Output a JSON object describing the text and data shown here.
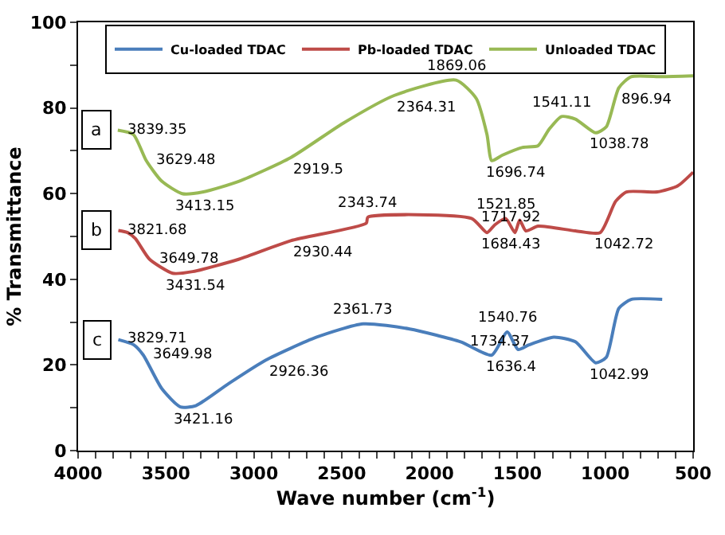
{
  "chart_data": {
    "type": "line",
    "xlabel": "Wave number (cm$^{-1}$)",
    "ylabel": "% Transmittance",
    "xlim": [
      4000,
      500
    ],
    "xticks": [
      4000,
      {
        "value": 3900,
        "label": null
      },
      {
        "value": 3800,
        "label": null
      },
      {
        "value": 3700,
        "label": null
      },
      {
        "value": 3600,
        "label": null
      },
      3500,
      {
        "value": 3400,
        "label": null
      },
      {
        "value": 3300,
        "label": null
      },
      {
        "value": 3200,
        "label": null
      },
      {
        "value": 3100,
        "label": null
      },
      3000,
      {
        "value": 2900,
        "label": null
      },
      {
        "value": 2800,
        "label": null
      },
      {
        "value": 2700,
        "label": null
      },
      {
        "value": 2600,
        "label": null
      },
      2500,
      {
        "value": 2400,
        "label": null
      },
      {
        "value": 2300,
        "label": null
      },
      {
        "value": 2200,
        "label": null
      },
      {
        "value": 2100,
        "label": null
      },
      2000,
      {
        "value": 1900,
        "label": null
      },
      {
        "value": 1800,
        "label": null
      },
      {
        "value": 1700,
        "label": null
      },
      {
        "value": 1600,
        "label": null
      },
      1500,
      {
        "value": 1400,
        "label": null
      },
      {
        "value": 1300,
        "label": null
      },
      {
        "value": 1200,
        "label": null
      },
      {
        "value": 1100,
        "label": null
      },
      1000,
      {
        "value": 900,
        "label": null
      },
      {
        "value": 800,
        "label": null
      },
      {
        "value": 700,
        "label": null
      },
      {
        "value": 600,
        "label": null
      },
      500
    ],
    "ylim": [
      0,
      100
    ],
    "yticks": [
      0,
      {
        "value": 10,
        "label": null
      },
      20,
      {
        "value": 30,
        "label": null
      },
      40,
      {
        "value": 50,
        "label": null
      },
      60,
      {
        "value": 70,
        "label": null
      },
      80,
      {
        "value": 90,
        "label": null
      },
      100
    ],
    "legend": "top",
    "marker": "none",
    "line_style": "solid",
    "series": [
      {
        "name": "Cu-loaded TDAC",
        "color": "#4a7ebb",
        "x": [
          3771,
          3683,
          3629,
          3524,
          3418,
          3330,
          3145,
          2933,
          2642,
          2378,
          2113,
          1823,
          1646,
          1558,
          1496,
          1434,
          1293,
          1170,
          1055,
          994,
          923,
          853,
          676
        ],
        "values": [
          25.9,
          24.7,
          22.3,
          14.5,
          10.2,
          10.5,
          15.6,
          21.1,
          26.5,
          29.6,
          28.4,
          25.4,
          22.3,
          27.7,
          23.6,
          24.7,
          26.5,
          25.4,
          20.5,
          21.8,
          33.2,
          35.3,
          35.3
        ]
      },
      {
        "name": "Pb-loaded TDAC",
        "color": "#be4b48",
        "x": [
          3771,
          3718,
          3674,
          3594,
          3462,
          3348,
          3083,
          2790,
          2360,
          2351,
          1761,
          1673,
          1629,
          1567,
          1514,
          1487,
          1452,
          1382,
          1170,
          1029,
          941,
          879,
          703,
          588,
          500
        ],
        "values": [
          51.4,
          50.9,
          49.5,
          44.7,
          41.4,
          41.8,
          44.7,
          49,
          53.1,
          54.5,
          54.2,
          50.9,
          52.7,
          54.2,
          50.9,
          53.8,
          51.3,
          52.4,
          51.3,
          50.9,
          58.2,
          60.4,
          60.4,
          61.8,
          65
        ]
      },
      {
        "name": "Unloaded TDAC",
        "color": "#98b954",
        "x": [
          3774,
          3685,
          3612,
          3524,
          3408,
          3287,
          3083,
          2790,
          2493,
          2202,
          1849,
          1734,
          1673,
          1646,
          1584,
          1470,
          1382,
          1320,
          1249,
          1170,
          1055,
          994,
          923,
          853,
          676,
          500
        ],
        "values": [
          74.8,
          73.8,
          67.7,
          62.9,
          60,
          60.4,
          62.9,
          68.4,
          76.4,
          82.9,
          86.5,
          82.2,
          73.8,
          67.7,
          69,
          70.8,
          71.2,
          75,
          78,
          77.4,
          74.2,
          75.6,
          84.7,
          87.3,
          87.3,
          87.5
        ]
      }
    ],
    "annotations": [
      {
        "text": "a",
        "x": 3774,
        "y": 74.8
      },
      {
        "text": "b",
        "x": 3771,
        "y": 51.4
      },
      {
        "text": "c",
        "x": 3771,
        "y": 25.9
      },
      {
        "text": "3839.35",
        "x": 3774,
        "y": 74.8
      },
      {
        "text": "3629.48",
        "x": 3612,
        "y": 67.7
      },
      {
        "text": "3413.15",
        "x": 3408,
        "y": 60
      },
      {
        "text": "2919.5",
        "x": 2790,
        "y": 68.4
      },
      {
        "text": "2364.31",
        "x": 2202,
        "y": 82.9
      },
      {
        "text": "1869.06",
        "x": 1849,
        "y": 86.5
      },
      {
        "text": "1696.74",
        "x": 1646,
        "y": 67.7
      },
      {
        "text": "1541.11",
        "x": 1249,
        "y": 78
      },
      {
        "text": "1038.78",
        "x": 1055,
        "y": 74.2
      },
      {
        "text": "896.94",
        "x": 923,
        "y": 84.7
      },
      {
        "text": "3821.68",
        "x": 3771,
        "y": 51.4
      },
      {
        "text": "3649.78",
        "x": 3594,
        "y": 44.7
      },
      {
        "text": "3431.54",
        "x": 3462,
        "y": 41.4
      },
      {
        "text": "2930.44",
        "x": 2790,
        "y": 49
      },
      {
        "text": "2343.74",
        "x": 2351,
        "y": 54.5
      },
      {
        "text": "1717.92",
        "x": 1761,
        "y": 54.2
      },
      {
        "text": "1684.43",
        "x": 1673,
        "y": 50.9
      },
      {
        "text": "1521.85",
        "x": 1567,
        "y": 54.2
      },
      {
        "text": "1042.72",
        "x": 1029,
        "y": 50.9
      },
      {
        "text": "3829.71",
        "x": 3771,
        "y": 25.9
      },
      {
        "text": "3649.98",
        "x": 3629,
        "y": 22.3
      },
      {
        "text": "3421.16",
        "x": 3418,
        "y": 10.2
      },
      {
        "text": "2926.36",
        "x": 2933,
        "y": 21.1
      },
      {
        "text": "2361.73",
        "x": 2378,
        "y": 29.6
      },
      {
        "text": "1734.37",
        "x": 1823,
        "y": 25.4
      },
      {
        "text": "1636.4",
        "x": 1646,
        "y": 22.3
      },
      {
        "text": "1540.76",
        "x": 1558,
        "y": 27.7
      },
      {
        "text": "1042.99",
        "x": 1055,
        "y": 20.5
      }
    ]
  }
}
